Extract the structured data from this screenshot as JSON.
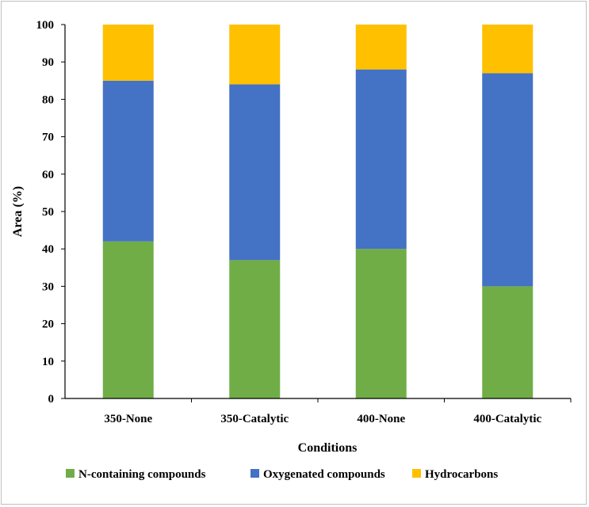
{
  "chart_data": {
    "type": "bar",
    "stacked": true,
    "categories": [
      "350-None",
      "350-Catalytic",
      "400-None",
      "400-Catalytic"
    ],
    "series": [
      {
        "name": "N-containing compounds",
        "values": [
          42,
          37,
          40,
          30
        ],
        "color": "#70ad47"
      },
      {
        "name": "Oxygenated compounds",
        "values": [
          43,
          47,
          48,
          57
        ],
        "color": "#4472c4"
      },
      {
        "name": "Hydrocarbons",
        "values": [
          15,
          16,
          12,
          13
        ],
        "color": "#ffc000"
      }
    ],
    "title": "",
    "xlabel": "Conditions",
    "ylabel": "Area (%)",
    "ylim": [
      0,
      100
    ],
    "yticks": [
      0,
      10,
      20,
      30,
      40,
      50,
      60,
      70,
      80,
      90,
      100
    ],
    "grid": false,
    "legend_position": "bottom"
  }
}
